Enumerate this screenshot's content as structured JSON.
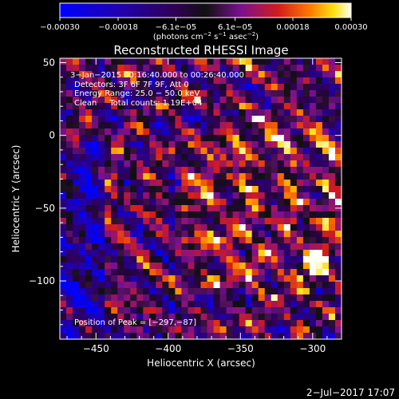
{
  "chart_data": {
    "type": "heatmap",
    "title": "Reconstructed RHESSI Image",
    "xlabel": "Heliocentric X (arcsec)",
    "ylabel": "Heliocentric Y (arcsec)",
    "xlim": [
      -475,
      -280
    ],
    "ylim": [
      -140,
      53
    ],
    "x_ticks": [
      -450,
      -400,
      -350,
      -300
    ],
    "x_tick_labels": [
      "−450",
      "−400",
      "−350",
      "−300"
    ],
    "y_ticks": [
      50,
      0,
      -50,
      -100
    ],
    "y_tick_labels": [
      "50",
      "0",
      "−50",
      "−100"
    ],
    "colorbar": {
      "min": -0.0003,
      "max": 0.0003,
      "tick_values": [
        -0.0003,
        -0.00018,
        -6.1e-05,
        6.1e-05,
        0.00018,
        0.0003
      ],
      "tick_labels": [
        "−0.00030",
        "−0.00018",
        "−6.1e−05",
        "6.1e−05",
        "0.00018",
        "0.00030"
      ],
      "unit_main": "(photons cm",
      "unit_sup1": "−2",
      "unit_mid1": " s",
      "unit_sup2": "−1",
      "unit_mid2": " asec",
      "unit_sup3": "−2",
      "unit_end": ")"
    },
    "annotations": [
      "3−Jan−2015 00:16:40.000 to 00:26:40.000",
      "Detectors: 3F 6F 7F 9F, Att 0",
      "Energy Range: 25.0 − 50.0 keV",
      "Clean     Total counts: 1.19E+04"
    ],
    "peak_label": "Position of Peak = [−297,−87]",
    "peak_position": [
      -297,
      -87
    ],
    "footer_date": "2−Jul−2017 17:07"
  }
}
